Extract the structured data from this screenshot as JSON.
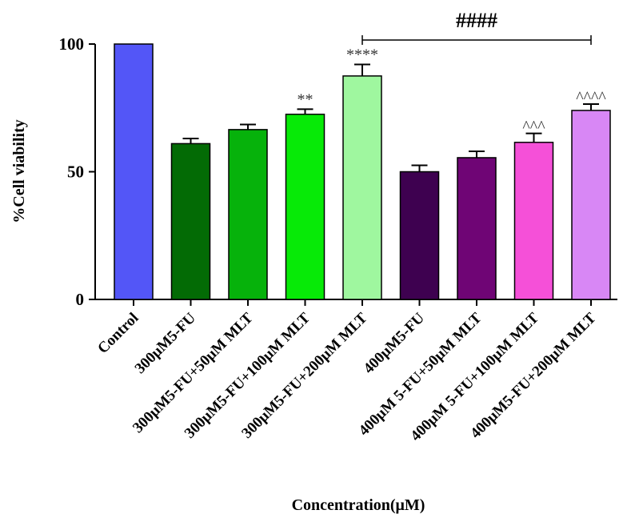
{
  "chart_data": {
    "type": "bar",
    "title": "",
    "xlabel": "Concentration(μM)",
    "ylabel": "%Cell viability",
    "ylim": [
      0,
      100
    ],
    "yticks": [
      "0",
      "50",
      "100"
    ],
    "grid": false,
    "categories": [
      "Control",
      "300μM5-FU",
      "300μM5-FU+50μM MLT",
      "300μM5-FU+100μM MLT",
      "300μM5-FU+200μM MLT",
      "400μM5-FU",
      "400μM 5-FU+50μM MLT",
      "400μM 5-FU+100μM MLT",
      "400μM5-FU+200μM MLT"
    ],
    "values": [
      100,
      61,
      66.5,
      72.5,
      87.5,
      50,
      55.5,
      61.5,
      74
    ],
    "errors": [
      0,
      2,
      2,
      2,
      4.5,
      2.5,
      2.5,
      3.5,
      2.5
    ],
    "colors": [
      "#5356f7",
      "#036b05",
      "#06b20b",
      "#07ea07",
      "#9ff79f",
      "#3e0150",
      "#6f0575",
      "#f550d8",
      "#d887f5"
    ],
    "significance": [
      "",
      "",
      "",
      "**",
      "****",
      "",
      "",
      "^^^",
      "^^^^"
    ],
    "bracket": {
      "from_index": 4,
      "to_index": 8,
      "label": "####"
    }
  }
}
